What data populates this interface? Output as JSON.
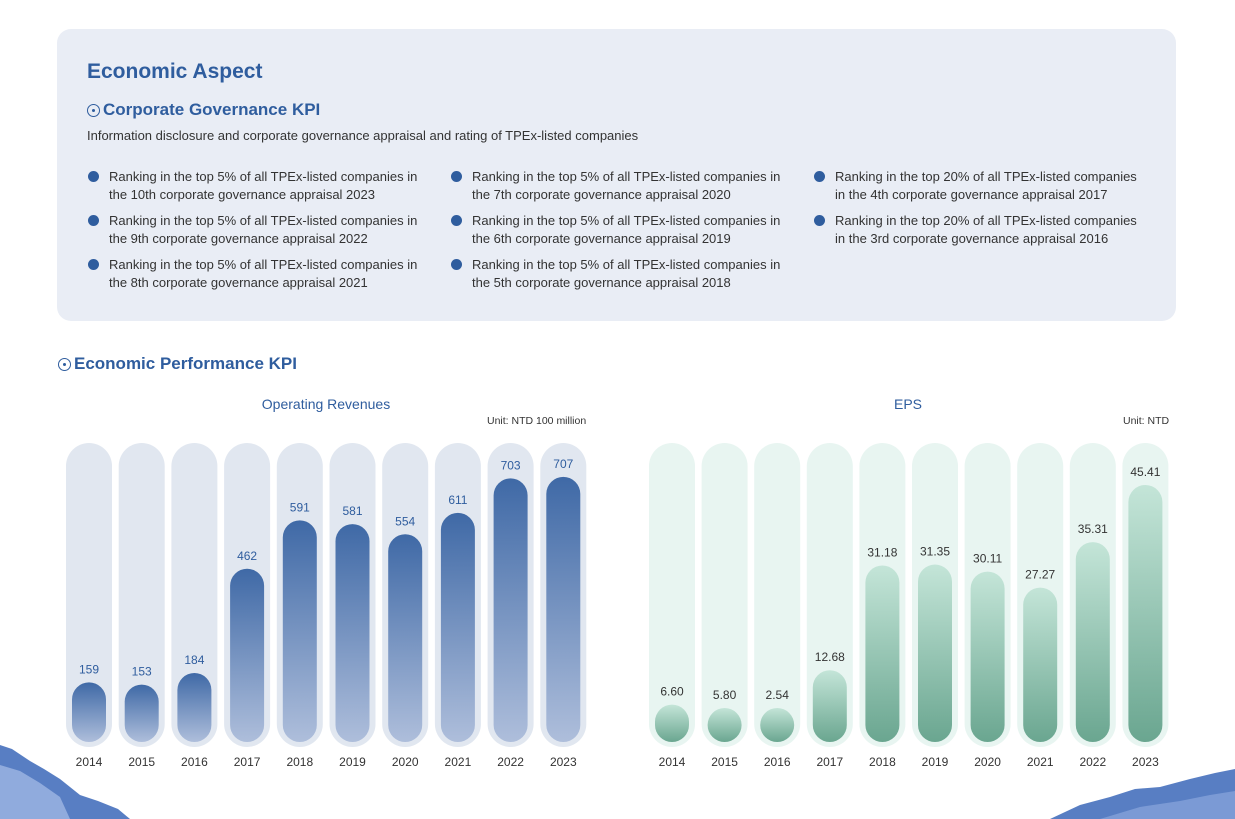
{
  "economic": {
    "title": "Economic Aspect",
    "kpi_title": "Corporate Governance KPI",
    "description": "Information disclosure and corporate governance appraisal and rating of TPEx-listed companies",
    "columns": [
      [
        "Ranking in the top 5% of all TPEx-listed companies in the 10th corporate governance appraisal 2023",
        "Ranking in the top 5% of all TPEx-listed companies in the 9th corporate governance appraisal 2022",
        "Ranking in the top 5% of all TPEx-listed companies in the 8th corporate governance appraisal 2021"
      ],
      [
        "Ranking in the top 5% of all TPEx-listed companies in the 7th corporate governance appraisal 2020",
        "Ranking in the top 5% of all TPEx-listed companies in the 6th corporate governance appraisal 2019",
        "Ranking in the top 5% of all TPEx-listed companies in the 5th corporate governance appraisal 2018"
      ],
      [
        "Ranking in the top 20% of all TPEx-listed companies in the 4th corporate governance appraisal 2017",
        "Ranking in the top 20% of all TPEx-listed companies in the 3rd corporate governance appraisal 2016"
      ]
    ]
  },
  "performance": {
    "title": "Economic Performance KPI"
  },
  "colors": {
    "accent": "#2f5d9e",
    "revenue_track": "#e1e7f0",
    "eps_track": "#e8f5f1",
    "eps_label": "#333333",
    "revenue_label": "#2f5d9e"
  },
  "chart_data": [
    {
      "type": "bar",
      "title": "Operating Revenues",
      "unit": "Unit: NTD 100 million",
      "categories": [
        "2014",
        "2015",
        "2016",
        "2017",
        "2018",
        "2019",
        "2020",
        "2021",
        "2022",
        "2023"
      ],
      "values": [
        159,
        153,
        184,
        462,
        591,
        581,
        554,
        611,
        703,
        707
      ],
      "value_labels": [
        "159",
        "153",
        "184",
        "462",
        "591",
        "581",
        "554",
        "611",
        "703",
        "707"
      ],
      "ylim": [
        0,
        800
      ]
    },
    {
      "type": "bar",
      "title": "EPS",
      "unit": "Unit: NTD",
      "categories": [
        "2014",
        "2015",
        "2016",
        "2017",
        "2018",
        "2019",
        "2020",
        "2021",
        "2022",
        "2023"
      ],
      "values": [
        6.6,
        5.8,
        2.54,
        12.68,
        31.18,
        31.35,
        30.11,
        27.27,
        35.31,
        45.41
      ],
      "value_labels": [
        "6.60",
        "5.80",
        "2.54",
        "12.68",
        "31.18",
        "31.35",
        "30.11",
        "27.27",
        "35.31",
        "45.41"
      ],
      "ylim": [
        0,
        53
      ]
    }
  ]
}
